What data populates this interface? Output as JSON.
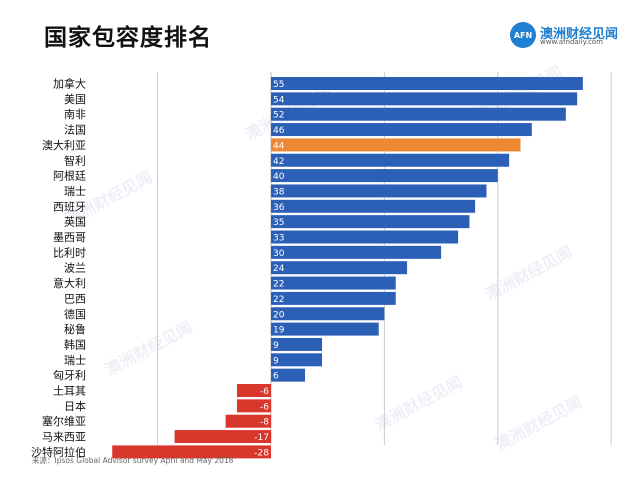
{
  "title": "国家包容度排名",
  "logo": {
    "badge": "AFN",
    "name": "澳洲财经见闻",
    "url": "www.afndaily.com"
  },
  "watermarks": [
    "澳洲财经见闻",
    "澳洲财经见闻",
    "澳洲财经见闻",
    "澳洲财经见闻",
    "澳洲财经见闻",
    "澳洲财经见闻",
    "澳洲财经见闻"
  ],
  "source": "来源：Ipsos Global Advisor survey April and May 2018",
  "colors": {
    "positive": "#2b60b6",
    "highlight": "#ef8834",
    "negative": "#d9372b",
    "grid": "#cccccc",
    "brand": "#1f7fd0"
  },
  "chart_data": {
    "type": "bar",
    "orientation": "horizontal",
    "title": "国家包容度排名",
    "categories": [
      "加拿大",
      "美国",
      "南非",
      "法国",
      "澳大利亚",
      "智利",
      "阿根廷",
      "瑞士",
      "西班牙",
      "英国",
      "墨西哥",
      "比利时",
      "波兰",
      "意大利",
      "巴西",
      "德国",
      "秘鲁",
      "韩国",
      "瑞士",
      "匈牙利",
      "土耳其",
      "日本",
      "塞尔维亚",
      "马来西亚",
      "沙特阿拉伯"
    ],
    "values": [
      55,
      54,
      52,
      46,
      44,
      42,
      40,
      38,
      36,
      35,
      33,
      30,
      24,
      22,
      22,
      20,
      19,
      9,
      9,
      6,
      -6,
      -6,
      -8,
      -17,
      -28
    ],
    "highlight_category": "澳大利亚",
    "xlim": [
      -30,
      60
    ],
    "grid": true
  }
}
